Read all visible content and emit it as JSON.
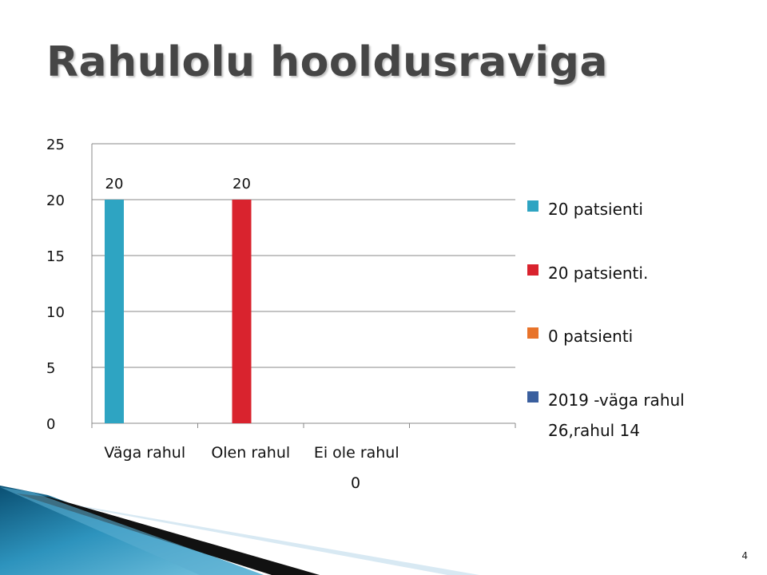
{
  "slide": {
    "title": "Rahulolu hooldusraviga",
    "page_number": "4"
  },
  "chart_data": {
    "type": "bar",
    "categories": [
      "Väga rahul",
      "Olen rahul",
      "Ei ole rahul"
    ],
    "extra_category_label": "0",
    "series": [
      {
        "name": "20 patsienti",
        "values": [
          20,
          null,
          null
        ],
        "color": "#2ea4c2"
      },
      {
        "name": "20 patsienti.",
        "values": [
          null,
          20,
          null
        ],
        "color": "#d9232e"
      },
      {
        "name": "0 patsienti",
        "values": [
          null,
          null,
          0
        ],
        "color": "#e8732a"
      },
      {
        "name": "2019 -väga rahul 26,rahul 14",
        "values": [
          null,
          null,
          null
        ],
        "color": "#3a5f9e"
      }
    ],
    "data_labels": [
      "20",
      "20"
    ],
    "y_ticks": [
      "0",
      "5",
      "10",
      "15",
      "20",
      "25"
    ],
    "ylim": [
      0,
      25
    ],
    "grid": true,
    "legend_position": "right"
  }
}
